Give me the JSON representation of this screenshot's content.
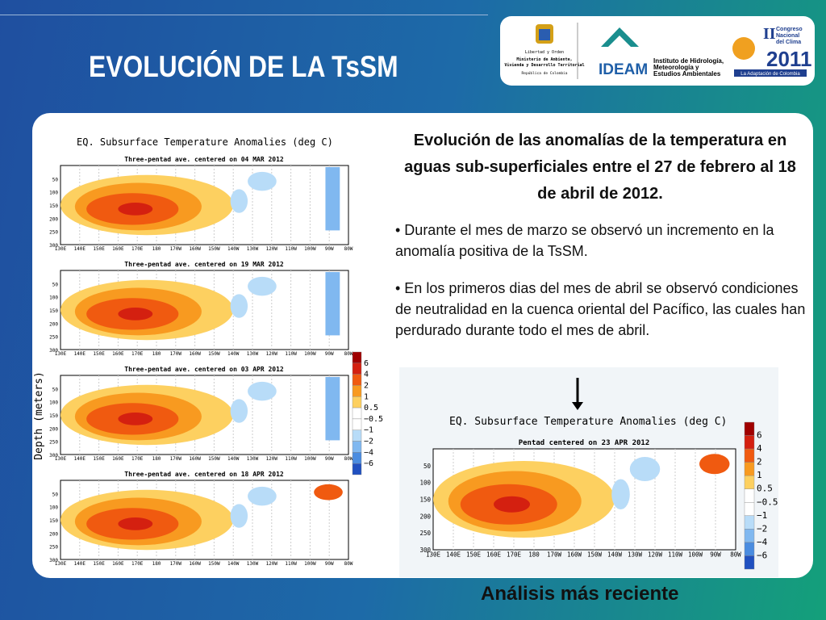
{
  "header": {
    "title": "EVOLUCIÓN DE LA TsSM"
  },
  "logos": {
    "shield": [
      "Libertad y Orden",
      "Ministerio de Ambiente,",
      "Vivienda y Desarrollo Territorial",
      "República de Colombia"
    ],
    "ideam": "IDEAM",
    "ideam_name": [
      "Instituto de Hidrología,",
      "Meteorología y",
      "Estudios Ambientales"
    ],
    "congreso": [
      "II",
      "Congreso",
      "Nacional",
      "del Clima",
      "2011",
      "La Adaptación de Colombia"
    ]
  },
  "text": {
    "heading": "Evolución de las anomalías de la temperatura en aguas sub-superficiales entre el 27 de febrero al 18 de abril de 2012.",
    "bullets": [
      "• Durante  el mes de marzo se observó un incremento en la anomalía positiva de la TsSM.",
      "• En los primeros dias del mes de abril se observó condiciones de neutralidad en la cuenca oriental del Pacífico, las cuales han perdurado durante todo el mes de abril."
    ],
    "caption": "Análisis más reciente"
  },
  "axes": {
    "depth_ticks": [
      "50",
      "100",
      "150",
      "200",
      "250",
      "300"
    ],
    "lon_ticks": [
      "130E",
      "140E",
      "150E",
      "160E",
      "170E",
      "180",
      "170W",
      "160W",
      "150W",
      "140W",
      "130W",
      "120W",
      "110W",
      "100W",
      "90W",
      "80W"
    ],
    "colorbar": [
      "6",
      "4",
      "2",
      "1",
      "0.5",
      "−0.5",
      "−1",
      "−2",
      "−4",
      "−6"
    ]
  },
  "figure_left": {
    "title": "EQ. Subsurface Temperature Anomalies (deg C)",
    "y_label": "Depth (meters)",
    "panels": [
      "Three-pentad ave. centered on 04 MAR 2012",
      "Three-pentad ave. centered on 19 MAR 2012",
      "Three-pentad ave. centered on 03 APR 2012",
      "Three-pentad ave. centered on 18 APR 2012"
    ]
  },
  "figure_right": {
    "title": "EQ. Subsurface Temperature Anomalies (deg C)",
    "subtitle": "Pentad centered on 23 APR 2012"
  }
}
